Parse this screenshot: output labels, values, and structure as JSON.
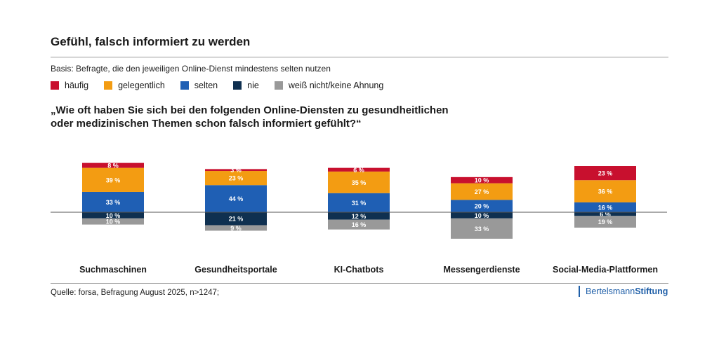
{
  "header": {
    "title": "Gefühl, falsch informiert zu werden",
    "basis": "Basis: Befragte, die den jeweiligen Online-Dienst mindestens selten nutzen",
    "question_line1": "„Wie oft haben Sie sich bei den folgenden Online-Diensten zu gesundheitlichen",
    "question_line2": "oder medizinischen Themen schon falsch informiert gefühlt?“"
  },
  "legend": [
    {
      "label": "häufig",
      "color": "#c8102e"
    },
    {
      "label": "gelegentlich",
      "color": "#f39c12"
    },
    {
      "label": "selten",
      "color": "#1f5fb4"
    },
    {
      "label": "nie",
      "color": "#0f3050"
    },
    {
      "label": "weiß nicht/keine Ahnung",
      "color": "#999999"
    }
  ],
  "footer": {
    "source": "Quelle: forsa, Befragung August 2025, n>1247;",
    "logo_part1": "Bertelsmann",
    "logo_part2": "Stiftung"
  },
  "chart_data": {
    "type": "bar",
    "stacked": "diverging",
    "categories": [
      "Suchmaschinen",
      "Gesundheitsportale",
      "KI-Chatbots",
      "Messengerdienste",
      "Social-Media-Plattformen"
    ],
    "series": [
      {
        "name": "häufig",
        "color": "#c8102e",
        "values": [
          8,
          3,
          6,
          10,
          23
        ],
        "labels": [
          "8 %",
          "3 %",
          "6 %",
          "10 %",
          "23 %"
        ]
      },
      {
        "name": "gelegentlich",
        "color": "#f39c12",
        "values": [
          39,
          23,
          35,
          27,
          36
        ],
        "labels": [
          "39 %",
          "23 %",
          "35 %",
          "27 %",
          "36 %"
        ]
      },
      {
        "name": "selten",
        "color": "#1f5fb4",
        "values": [
          33,
          44,
          31,
          20,
          16
        ],
        "labels": [
          "33 %",
          "44 %",
          "31 %",
          "20 %",
          "16 %"
        ]
      },
      {
        "name": "nie",
        "color": "#0f3050",
        "values": [
          10,
          21,
          12,
          10,
          6
        ],
        "labels": [
          "10 %",
          "21 %",
          "12 %",
          "10 %",
          "6 %"
        ]
      },
      {
        "name": "weiß nicht/keine Ahnung",
        "color": "#999999",
        "values": [
          10,
          9,
          16,
          33,
          19
        ],
        "labels": [
          "10 %",
          "9 %",
          "16 %",
          "33 %",
          "19 %"
        ]
      }
    ],
    "above_baseline": [
      "häufig",
      "gelegentlich",
      "selten"
    ],
    "below_baseline": [
      "nie",
      "weiß nicht/keine Ahnung"
    ],
    "value_unit": "%"
  }
}
